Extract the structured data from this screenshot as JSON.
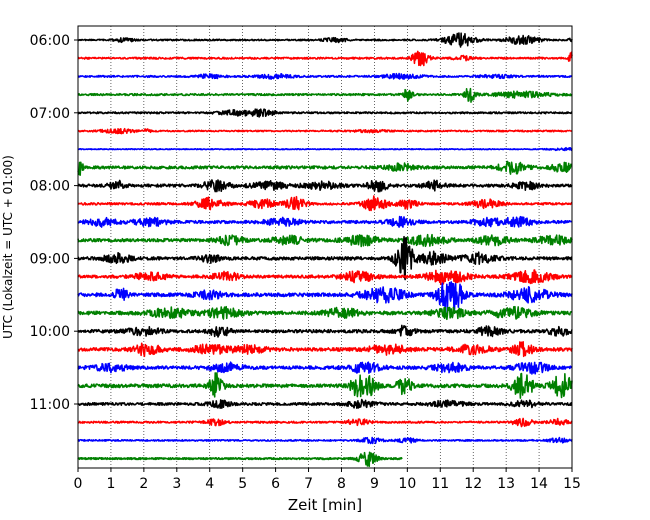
{
  "chart_data": {
    "type": "line",
    "title": "",
    "xlabel": "Zeit  [min]",
    "ylabel": "UTC (Lokalzeit = UTC + 01:00)",
    "xlim": [
      0,
      15
    ],
    "x_ticks": [
      "0",
      "1",
      "2",
      "3",
      "4",
      "5",
      "6",
      "7",
      "8",
      "9",
      "10",
      "11",
      "12",
      "13",
      "14",
      "15"
    ],
    "y_ticks": [
      "06:00",
      "07:00",
      "08:00",
      "09:00",
      "10:00",
      "11:00"
    ],
    "grid": "vertical dotted",
    "colors": [
      "#000000",
      "#ff0000",
      "#0000ff",
      "#008000"
    ],
    "traces": [
      {
        "row": 0,
        "start": "06:00",
        "color": "black",
        "noise": 0.1,
        "events": [
          [
            1.4,
            0.25,
            0.3
          ],
          [
            7.8,
            0.3,
            0.35
          ],
          [
            11.6,
            1.0,
            0.45
          ],
          [
            13.5,
            0.6,
            0.5
          ],
          [
            15.0,
            0.4,
            0.1
          ]
        ]
      },
      {
        "row": 1,
        "start": "06:15",
        "color": "red",
        "noise": 0.12,
        "events": [
          [
            10.4,
            1.1,
            0.25
          ],
          [
            11.7,
            0.3,
            0.3
          ],
          [
            15.0,
            0.9,
            0.1
          ]
        ]
      },
      {
        "row": 2,
        "start": "06:30",
        "color": "blue",
        "noise": 0.12,
        "events": [
          [
            4.0,
            0.25,
            0.4
          ],
          [
            6.0,
            0.3,
            0.5
          ],
          [
            9.8,
            0.3,
            0.6
          ],
          [
            12.7,
            0.2,
            0.5
          ]
        ]
      },
      {
        "row": 3,
        "start": "06:45",
        "color": "green",
        "noise": 0.13,
        "events": [
          [
            10.0,
            0.9,
            0.15
          ],
          [
            11.9,
            1.1,
            0.15
          ],
          [
            13.5,
            0.4,
            0.8
          ]
        ]
      },
      {
        "row": 4,
        "start": "07:00",
        "color": "black",
        "noise": 0.12,
        "events": [
          [
            4.8,
            0.35,
            0.5
          ],
          [
            5.6,
            0.45,
            0.4
          ]
        ]
      },
      {
        "row": 5,
        "start": "07:15",
        "color": "red",
        "noise": 0.1,
        "events": [
          [
            1.2,
            0.3,
            0.5
          ],
          [
            2.1,
            0.25,
            0.1
          ],
          [
            8.9,
            0.15,
            0.5
          ]
        ]
      },
      {
        "row": 6,
        "start": "07:30",
        "color": "blue",
        "noise": 0.06,
        "events": [
          [
            14.8,
            0.15,
            0.5
          ]
        ]
      },
      {
        "row": 7,
        "start": "07:45",
        "color": "green",
        "noise": 0.2,
        "events": [
          [
            0.05,
            1.1,
            0.1
          ],
          [
            9.8,
            0.5,
            0.4
          ],
          [
            13.2,
            0.8,
            0.4
          ],
          [
            14.7,
            0.6,
            0.3
          ]
        ]
      },
      {
        "row": 8,
        "start": "08:00",
        "color": "black",
        "noise": 0.2,
        "events": [
          [
            1.2,
            0.6,
            0.25
          ],
          [
            4.2,
            0.7,
            0.4
          ],
          [
            5.8,
            0.5,
            0.5
          ],
          [
            7.4,
            0.5,
            0.5
          ],
          [
            9.1,
            0.7,
            0.3
          ],
          [
            10.8,
            0.6,
            0.3
          ],
          [
            13.6,
            0.5,
            0.4
          ]
        ]
      },
      {
        "row": 9,
        "start": "08:15",
        "color": "red",
        "noise": 0.15,
        "events": [
          [
            4.0,
            0.8,
            0.4
          ],
          [
            5.6,
            0.6,
            0.4
          ],
          [
            6.6,
            0.9,
            0.3
          ],
          [
            9.0,
            1.0,
            0.35
          ],
          [
            10.0,
            0.6,
            0.3
          ],
          [
            12.4,
            0.6,
            0.4
          ]
        ]
      },
      {
        "row": 10,
        "start": "08:30",
        "color": "blue",
        "noise": 0.2,
        "events": [
          [
            0.7,
            0.6,
            0.4
          ],
          [
            2.2,
            0.5,
            0.5
          ],
          [
            6.2,
            0.5,
            0.5
          ],
          [
            9.8,
            0.6,
            0.4
          ],
          [
            12.5,
            0.5,
            0.5
          ],
          [
            13.4,
            0.6,
            0.4
          ]
        ]
      },
      {
        "row": 11,
        "start": "08:45",
        "color": "green",
        "noise": 0.22,
        "events": [
          [
            4.6,
            0.6,
            0.4
          ],
          [
            6.4,
            0.5,
            0.5
          ],
          [
            8.6,
            0.7,
            0.5
          ],
          [
            10.6,
            0.7,
            0.6
          ],
          [
            12.6,
            0.6,
            0.5
          ],
          [
            14.4,
            0.6,
            0.5
          ]
        ]
      },
      {
        "row": 12,
        "start": "09:00",
        "color": "black",
        "noise": 0.22,
        "events": [
          [
            1.2,
            0.6,
            0.4
          ],
          [
            4.0,
            0.5,
            0.3
          ],
          [
            9.9,
            3.2,
            0.25
          ],
          [
            10.8,
            0.8,
            0.4
          ],
          [
            12.2,
            0.7,
            0.5
          ]
        ]
      },
      {
        "row": 13,
        "start": "09:15",
        "color": "red",
        "noise": 0.2,
        "events": [
          [
            2.2,
            0.5,
            0.5
          ],
          [
            4.5,
            0.6,
            0.4
          ],
          [
            8.5,
            0.7,
            0.5
          ],
          [
            11.2,
            1.0,
            0.6
          ],
          [
            13.8,
            0.8,
            0.6
          ]
        ]
      },
      {
        "row": 14,
        "start": "09:30",
        "color": "blue",
        "noise": 0.25,
        "events": [
          [
            1.3,
            0.9,
            0.2
          ],
          [
            4.0,
            0.5,
            0.4
          ],
          [
            9.3,
            1.0,
            0.6
          ],
          [
            11.3,
            2.6,
            0.35
          ],
          [
            13.7,
            0.9,
            0.6
          ]
        ]
      },
      {
        "row": 15,
        "start": "09:45",
        "color": "green",
        "noise": 0.25,
        "events": [
          [
            2.8,
            0.6,
            0.6
          ],
          [
            4.4,
            0.7,
            0.5
          ],
          [
            8.0,
            0.6,
            0.5
          ],
          [
            11.3,
            0.7,
            0.5
          ],
          [
            13.2,
            0.7,
            0.6
          ]
        ]
      },
      {
        "row": 16,
        "start": "10:00",
        "color": "black",
        "noise": 0.22,
        "events": [
          [
            2.0,
            0.5,
            0.5
          ],
          [
            4.3,
            0.7,
            0.3
          ],
          [
            9.9,
            0.7,
            0.3
          ],
          [
            12.5,
            0.6,
            0.4
          ],
          [
            14.6,
            0.6,
            0.3
          ]
        ]
      },
      {
        "row": 17,
        "start": "10:15",
        "color": "red",
        "noise": 0.25,
        "events": [
          [
            2.1,
            0.8,
            0.35
          ],
          [
            4.0,
            0.6,
            0.5
          ],
          [
            5.2,
            0.5,
            0.5
          ],
          [
            9.4,
            0.7,
            0.5
          ],
          [
            12.0,
            0.6,
            0.5
          ],
          [
            13.5,
            0.9,
            0.3
          ]
        ]
      },
      {
        "row": 18,
        "start": "10:30",
        "color": "blue",
        "noise": 0.22,
        "events": [
          [
            1.0,
            0.5,
            0.5
          ],
          [
            4.5,
            0.6,
            0.5
          ],
          [
            8.7,
            0.7,
            0.5
          ],
          [
            11.3,
            0.6,
            0.5
          ],
          [
            13.8,
            0.7,
            0.5
          ]
        ]
      },
      {
        "row": 19,
        "start": "10:45",
        "color": "green",
        "noise": 0.25,
        "events": [
          [
            4.2,
            1.7,
            0.2
          ],
          [
            8.5,
            1.6,
            0.2
          ],
          [
            8.9,
            1.2,
            0.2
          ],
          [
            9.9,
            1.3,
            0.2
          ],
          [
            13.5,
            1.6,
            0.3
          ],
          [
            14.7,
            1.7,
            0.3
          ]
        ]
      },
      {
        "row": 20,
        "start": "11:00",
        "color": "black",
        "noise": 0.18,
        "events": [
          [
            4.3,
            0.5,
            0.3
          ],
          [
            8.6,
            0.5,
            0.4
          ],
          [
            11.2,
            0.4,
            0.5
          ],
          [
            13.6,
            0.4,
            0.4
          ]
        ]
      },
      {
        "row": 21,
        "start": "11:15",
        "color": "red",
        "noise": 0.13,
        "events": [
          [
            4.2,
            0.4,
            0.3
          ],
          [
            8.5,
            0.5,
            0.3
          ],
          [
            13.5,
            0.5,
            0.3
          ],
          [
            14.6,
            0.4,
            0.3
          ]
        ]
      },
      {
        "row": 22,
        "start": "11:30",
        "color": "blue",
        "noise": 0.1,
        "events": [
          [
            8.9,
            0.4,
            0.3
          ],
          [
            10.0,
            0.3,
            0.3
          ],
          [
            14.6,
            0.3,
            0.3
          ]
        ]
      },
      {
        "row": 23,
        "start": "11:45",
        "color": "green",
        "noise": 0.12,
        "end_minute": 9.85,
        "events": [
          [
            8.8,
            1.1,
            0.25
          ]
        ]
      }
    ]
  }
}
